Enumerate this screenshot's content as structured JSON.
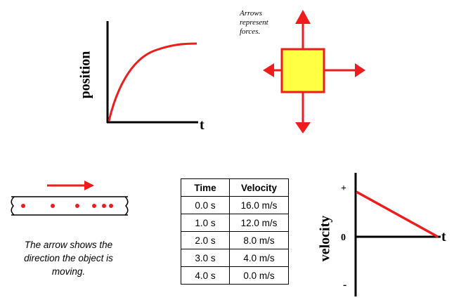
{
  "position_graph": {
    "ylabel": "position",
    "xlabel": "t",
    "curve_color": "#ee1c1c"
  },
  "force_diagram": {
    "caption": "Arrows represent forces.",
    "box_fill": "#ffff44",
    "box_stroke": "#ee1c1c",
    "arrow_color": "#ee1c1c"
  },
  "motion_diagram": {
    "caption": "The arrow shows the direction the object is moving.",
    "dot_color": "#ee1c1c",
    "arrow_color": "#ee1c1c"
  },
  "velocity_table": {
    "headers": [
      "Time",
      "Velocity"
    ],
    "rows": [
      [
        "0.0 s",
        "16.0 m/s"
      ],
      [
        "1.0 s",
        "12.0 m/s"
      ],
      [
        "2.0 s",
        "8.0 m/s"
      ],
      [
        "3.0 s",
        "4.0 m/s"
      ],
      [
        "4.0 s",
        "0.0 m/s"
      ]
    ]
  },
  "velocity_graph": {
    "ylabel": "velocity",
    "xlabel": "t",
    "plus_label": "+",
    "zero_label": "0",
    "minus_label": "-",
    "line_color": "#ee1c1c"
  }
}
